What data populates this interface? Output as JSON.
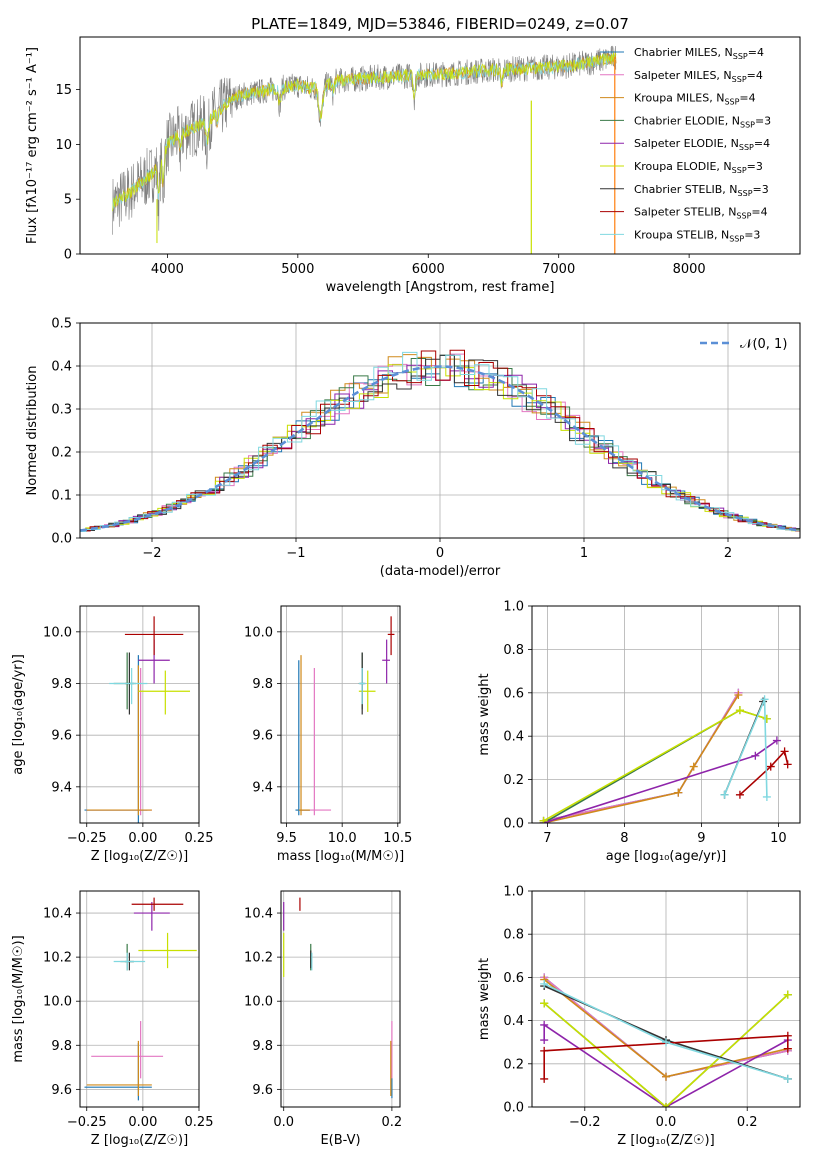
{
  "title": "PLATE=1849, MJD=53846, FIBERID=0249, z=0.07",
  "colors": {
    "Chabrier MILES": "#1f77b4",
    "Salpeter MILES": "#e377c2",
    "Kroupa MILES": "#d08a1b",
    "Chabrier ELODIE": "#3a7a48",
    "Salpeter ELODIE": "#8e24aa",
    "Kroupa ELODIE": "#c8e000",
    "Chabrier STELIB": "#333333",
    "Salpeter STELIB": "#aa0000",
    "Kroupa STELIB": "#80d8e0",
    "data": "#808080",
    "fit": "#ff7f0e",
    "normal": "#5b8fd6"
  },
  "chart_data": [
    {
      "type": "line",
      "name": "spectrum",
      "xlabel": "wavelength [Angstrom, rest frame]",
      "ylabel": "Flux [fλ10⁻¹⁷ erg cm⁻² s⁻¹ A⁻¹]",
      "xlim": [
        3330,
        8850
      ],
      "ylim": [
        0,
        19.8
      ],
      "xticks": [
        "4000",
        "5000",
        "6000",
        "7000",
        "8000"
      ],
      "yticks": [
        "0",
        "5",
        "10",
        "15"
      ],
      "legend_position": "right",
      "legend": [
        "Chabrier MILES, N_SSP=4",
        "Salpeter MILES, N_SSP=4",
        "Kroupa MILES, N_SSP=4",
        "Chabrier ELODIE, N_SSP=3",
        "Salpeter ELODIE, N_SSP=4",
        "Kroupa ELODIE, N_SSP=3",
        "Chabrier STELIB, N_SSP=3",
        "Salpeter STELIB, N_SSP=4",
        "Kroupa STELIB, N_SSP=3"
      ],
      "continuum": {
        "x": [
          3580,
          3700,
          3800,
          3900,
          4000,
          4100,
          4200,
          4300,
          4400,
          4500,
          4600,
          4700,
          4800,
          4900,
          5000,
          5100,
          5200,
          5300,
          5500,
          5700,
          5900,
          6100,
          6300,
          6500,
          6700,
          6900,
          7100,
          7300,
          7450
        ],
        "y": [
          4.5,
          5.5,
          6.5,
          7.5,
          10.0,
          11.0,
          11.5,
          12.0,
          13.2,
          14.2,
          14.6,
          14.8,
          15.0,
          15.2,
          15.4,
          15.1,
          15.4,
          15.8,
          16.0,
          16.2,
          16.3,
          16.4,
          16.6,
          16.8,
          16.9,
          17.0,
          17.2,
          17.6,
          18.0
        ]
      }
    },
    {
      "type": "line",
      "name": "residuals",
      "xlabel": "(data-model)/error",
      "ylabel": "Normed distribution",
      "xlim": [
        -2.5,
        2.5
      ],
      "ylim": [
        0,
        0.5
      ],
      "xticks": [
        "−2",
        "−1",
        "0",
        "1",
        "2"
      ],
      "yticks": [
        "0.0",
        "0.1",
        "0.2",
        "0.3",
        "0.4",
        "0.5"
      ],
      "legend": [
        "𝒩(0, 1)"
      ],
      "legend_position": "top-right",
      "grid": true,
      "bin_width": 0.1
    },
    {
      "type": "scatter",
      "name": "age-vs-Z",
      "xlabel": "Z [log₁₀(Z/Z☉)]",
      "ylabel": "age  [log₁₀(age/yr)]",
      "xlim": [
        -0.28,
        0.25
      ],
      "ylim": [
        9.26,
        10.1
      ],
      "xticks": [
        "−0.25",
        "0.00",
        "0.25"
      ],
      "yticks": [
        "9.4",
        "9.6",
        "9.8",
        "10.0"
      ],
      "grid": true,
      "points": [
        {
          "model": "Chabrier MILES",
          "x": -0.02,
          "xerr": [
            0.24,
            0.04
          ],
          "y": 9.31,
          "yerr": [
            0.05,
            0.6
          ]
        },
        {
          "model": "Salpeter MILES",
          "x": -0.01,
          "xerr": [
            0.24,
            0.05
          ],
          "y": 9.31,
          "yerr": [
            0.02,
            0.55
          ]
        },
        {
          "model": "Kroupa MILES",
          "x": -0.02,
          "xerr": [
            0.23,
            0.06
          ],
          "y": 9.31,
          "yerr": [
            0.02,
            0.56
          ]
        },
        {
          "model": "Chabrier ELODIE",
          "x": -0.07,
          "xerr": [
            0.06,
            0.04
          ],
          "y": 9.8,
          "yerr": [
            0.1,
            0.12
          ]
        },
        {
          "model": "Salpeter ELODIE",
          "x": 0.05,
          "xerr": [
            0.07,
            0.07
          ],
          "y": 9.89,
          "yerr": [
            0.09,
            0.08
          ]
        },
        {
          "model": "Kroupa ELODIE",
          "x": 0.1,
          "xerr": [
            0.12,
            0.11
          ],
          "y": 9.77,
          "yerr": [
            0.09,
            0.08
          ]
        },
        {
          "model": "Chabrier STELIB",
          "x": -0.06,
          "xerr": [
            0.02,
            0.02
          ],
          "y": 9.8,
          "yerr": [
            0.12,
            0.12
          ]
        },
        {
          "model": "Salpeter STELIB",
          "x": 0.05,
          "xerr": [
            0.13,
            0.13
          ],
          "y": 9.99,
          "yerr": [
            0.08,
            0.07
          ]
        },
        {
          "model": "Kroupa STELIB",
          "x": -0.05,
          "xerr": [
            0.1,
            0.07
          ],
          "y": 9.8,
          "yerr": [
            0.08,
            0.06
          ]
        }
      ]
    },
    {
      "type": "scatter",
      "name": "age-vs-mass",
      "xlabel": "mass [log₁₀(M/M☉)]",
      "ylabel": "",
      "xlim": [
        9.45,
        10.52
      ],
      "ylim": [
        9.26,
        10.1
      ],
      "xticks": [
        "9.5",
        "10.0",
        "10.5"
      ],
      "yticks": [
        "9.4",
        "9.6",
        "9.8",
        "10.0"
      ],
      "grid": true,
      "points": [
        {
          "model": "Chabrier MILES",
          "x": 9.61,
          "xerr": [
            0.03,
            0.1
          ],
          "y": 9.31,
          "yerr": [
            0.02,
            0.58
          ]
        },
        {
          "model": "Salpeter MILES",
          "x": 9.75,
          "xerr": [
            0.12,
            0.15
          ],
          "y": 9.31,
          "yerr": [
            0.02,
            0.55
          ]
        },
        {
          "model": "Kroupa MILES",
          "x": 9.63,
          "xerr": [
            0.02,
            0.08
          ],
          "y": 9.31,
          "yerr": [
            0.02,
            0.6
          ]
        },
        {
          "model": "Chabrier ELODIE",
          "x": 10.18,
          "xerr": [
            0.02,
            0.02
          ],
          "y": 9.8,
          "yerr": [
            0.1,
            0.12
          ]
        },
        {
          "model": "Salpeter ELODIE",
          "x": 10.4,
          "xerr": [
            0.04,
            0.03
          ],
          "y": 9.89,
          "yerr": [
            0.09,
            0.08
          ]
        },
        {
          "model": "Kroupa ELODIE",
          "x": 10.23,
          "xerr": [
            0.08,
            0.07
          ],
          "y": 9.77,
          "yerr": [
            0.08,
            0.08
          ]
        },
        {
          "model": "Chabrier STELIB",
          "x": 10.18,
          "xerr": [
            0.03,
            0.03
          ],
          "y": 9.8,
          "yerr": [
            0.12,
            0.12
          ]
        },
        {
          "model": "Salpeter STELIB",
          "x": 10.44,
          "xerr": [
            0.03,
            0.03
          ],
          "y": 9.99,
          "yerr": [
            0.08,
            0.07
          ]
        },
        {
          "model": "Kroupa STELIB",
          "x": 10.18,
          "xerr": [
            0.03,
            0.03
          ],
          "y": 9.8,
          "yerr": [
            0.08,
            0.06
          ]
        }
      ]
    },
    {
      "type": "line",
      "name": "mass-weight-vs-age",
      "xlabel": "age  [log₁₀(age/yr)]",
      "ylabel": "mass weight",
      "xlim": [
        6.8,
        10.28
      ],
      "ylim": [
        0,
        1.0
      ],
      "xticks": [
        "7",
        "8",
        "9",
        "10"
      ],
      "yticks": [
        "0.0",
        "0.2",
        "0.4",
        "0.6",
        "0.8",
        "1.0"
      ],
      "grid": true,
      "series": [
        {
          "model": "Chabrier MILES",
          "x": [
            6.95,
            8.7,
            9.48
          ],
          "y": [
            0.01,
            0.14,
            0.6
          ]
        },
        {
          "model": "Salpeter MILES",
          "x": [
            6.95,
            8.7,
            9.48
          ],
          "y": [
            0.01,
            0.14,
            0.6
          ]
        },
        {
          "model": "Kroupa MILES",
          "x": [
            6.95,
            8.7,
            8.9,
            9.48
          ],
          "y": [
            0.0,
            0.14,
            0.26,
            0.59
          ]
        },
        {
          "model": "Chabrier ELODIE",
          "x": [
            6.95,
            9.5,
            9.85
          ],
          "y": [
            0.0,
            0.52,
            0.48
          ]
        },
        {
          "model": "Salpeter ELODIE",
          "x": [
            6.95,
            9.7,
            9.98
          ],
          "y": [
            0.0,
            0.31,
            0.38
          ]
        },
        {
          "model": "Kroupa ELODIE",
          "x": [
            6.95,
            9.5,
            9.85
          ],
          "y": [
            0.01,
            0.52,
            0.48
          ]
        },
        {
          "model": "Chabrier STELIB",
          "x": [
            9.3,
            9.8
          ],
          "y": [
            0.13,
            0.56
          ]
        },
        {
          "model": "Salpeter STELIB",
          "x": [
            9.5,
            9.9,
            10.08,
            10.12
          ],
          "y": [
            0.13,
            0.26,
            0.33,
            0.27
          ]
        },
        {
          "model": "Kroupa STELIB",
          "x": [
            9.3,
            9.82,
            9.85
          ],
          "y": [
            0.13,
            0.57,
            0.12
          ]
        }
      ]
    },
    {
      "type": "scatter",
      "name": "mass-vs-Z",
      "xlabel": "Z [log₁₀(Z/Z☉)]",
      "ylabel": "mass [log₁₀(M/M☉)]",
      "xlim": [
        -0.28,
        0.25
      ],
      "ylim": [
        9.52,
        10.5
      ],
      "xticks": [
        "−0.25",
        "0.00",
        "0.25"
      ],
      "yticks": [
        "9.6",
        "9.8",
        "10.0",
        "10.2",
        "10.4"
      ],
      "grid": true,
      "points": [
        {
          "model": "Chabrier MILES",
          "x": -0.02,
          "xerr": [
            0.24,
            0.06
          ],
          "y": 9.61,
          "yerr": [
            0.06,
            0.2
          ]
        },
        {
          "model": "Salpeter MILES",
          "x": -0.01,
          "xerr": [
            0.22,
            0.1
          ],
          "y": 9.75,
          "yerr": [
            0.1,
            0.16
          ]
        },
        {
          "model": "Kroupa MILES",
          "x": -0.02,
          "xerr": [
            0.23,
            0.06
          ],
          "y": 9.62,
          "yerr": [
            0.05,
            0.2
          ]
        },
        {
          "model": "Chabrier ELODIE",
          "x": -0.07,
          "xerr": [
            0.03,
            0.03
          ],
          "y": 10.18,
          "yerr": [
            0.04,
            0.08
          ]
        },
        {
          "model": "Salpeter ELODIE",
          "x": 0.04,
          "xerr": [
            0.08,
            0.08
          ],
          "y": 10.4,
          "yerr": [
            0.08,
            0.05
          ]
        },
        {
          "model": "Kroupa ELODIE",
          "x": 0.11,
          "xerr": [
            0.13,
            0.13
          ],
          "y": 10.23,
          "yerr": [
            0.08,
            0.08
          ]
        },
        {
          "model": "Chabrier STELIB",
          "x": -0.06,
          "xerr": [
            0.02,
            0.02
          ],
          "y": 10.18,
          "yerr": [
            0.04,
            0.04
          ]
        },
        {
          "model": "Salpeter STELIB",
          "x": 0.05,
          "xerr": [
            0.1,
            0.13
          ],
          "y": 10.44,
          "yerr": [
            0.03,
            0.03
          ]
        },
        {
          "model": "Kroupa STELIB",
          "x": -0.07,
          "xerr": [
            0.06,
            0.08
          ],
          "y": 10.18,
          "yerr": [
            0.04,
            0.04
          ]
        }
      ]
    },
    {
      "type": "scatter",
      "name": "mass-vs-EBV",
      "xlabel": "E(B-V)",
      "ylabel": "",
      "xlim": [
        -0.005,
        0.215
      ],
      "ylim": [
        9.52,
        10.5
      ],
      "xticks": [
        "0.0",
        "0.2"
      ],
      "yticks": [
        "9.6",
        "9.8",
        "10.0",
        "10.2",
        "10.4"
      ],
      "grid": true,
      "points": [
        {
          "model": "Chabrier MILES",
          "x": 0.2,
          "y": 9.61,
          "yerr": [
            0.05,
            0.2
          ]
        },
        {
          "model": "Salpeter MILES",
          "x": 0.2,
          "y": 9.75,
          "yerr": [
            0.1,
            0.16
          ]
        },
        {
          "model": "Kroupa MILES",
          "x": 0.198,
          "y": 9.62,
          "yerr": [
            0.05,
            0.2
          ]
        },
        {
          "model": "Chabrier ELODIE",
          "x": 0.05,
          "y": 10.18,
          "yerr": [
            0.04,
            0.08
          ]
        },
        {
          "model": "Salpeter ELODIE",
          "x": 0.0,
          "y": 10.4,
          "yerr": [
            0.08,
            0.05
          ]
        },
        {
          "model": "Kroupa ELODIE",
          "x": 0.0,
          "y": 10.21,
          "yerr": [
            0.1,
            0.1
          ]
        },
        {
          "model": "Chabrier STELIB",
          "x": 0.05,
          "y": 10.19,
          "yerr": [
            0.04,
            0.04
          ]
        },
        {
          "model": "Salpeter STELIB",
          "x": 0.03,
          "y": 10.44,
          "yerr": [
            0.03,
            0.03
          ]
        },
        {
          "model": "Kroupa STELIB",
          "x": 0.052,
          "y": 10.18,
          "yerr": [
            0.04,
            0.04
          ]
        }
      ]
    },
    {
      "type": "line",
      "name": "mass-weight-vs-Z",
      "xlabel": "Z [log₁₀(Z/Z☉)]",
      "ylabel": "mass weight",
      "xlim": [
        -0.33,
        0.33
      ],
      "ylim": [
        0,
        1.0
      ],
      "xticks": [
        "−0.2",
        "0.0",
        "0.2"
      ],
      "yticks": [
        "0.0",
        "0.2",
        "0.4",
        "0.6",
        "0.8",
        "1.0"
      ],
      "grid": true,
      "series": [
        {
          "model": "Chabrier MILES",
          "x": [
            -0.3,
            0.0,
            0.3
          ],
          "y": [
            0.6,
            0.14,
            0.26
          ]
        },
        {
          "model": "Salpeter MILES",
          "x": [
            -0.3,
            0.0,
            0.3
          ],
          "y": [
            0.6,
            0.14,
            0.26
          ]
        },
        {
          "model": "Kroupa MILES",
          "x": [
            -0.3,
            0.0,
            0.3
          ],
          "y": [
            0.59,
            0.14,
            0.27
          ]
        },
        {
          "model": "Chabrier ELODIE",
          "x": [
            -0.3,
            0.0,
            0.3
          ],
          "y": [
            0.48,
            0.0,
            0.52
          ]
        },
        {
          "model": "Salpeter ELODIE",
          "x": [
            -0.3,
            -0.3,
            0.0,
            0.3
          ],
          "y": [
            0.31,
            0.38,
            0.0,
            0.31
          ]
        },
        {
          "model": "Kroupa ELODIE",
          "x": [
            -0.3,
            0.0,
            0.3
          ],
          "y": [
            0.48,
            0.0,
            0.52
          ]
        },
        {
          "model": "Chabrier STELIB",
          "x": [
            -0.3,
            0.0,
            0.3
          ],
          "y": [
            0.56,
            0.31,
            0.13
          ]
        },
        {
          "model": "Salpeter STELIB",
          "x": [
            -0.3,
            -0.3,
            0.3,
            0.3
          ],
          "y": [
            0.13,
            0.26,
            0.33,
            0.27
          ]
        },
        {
          "model": "Kroupa STELIB",
          "x": [
            -0.3,
            0.0,
            0.3
          ],
          "y": [
            0.57,
            0.3,
            0.13
          ]
        }
      ]
    }
  ]
}
